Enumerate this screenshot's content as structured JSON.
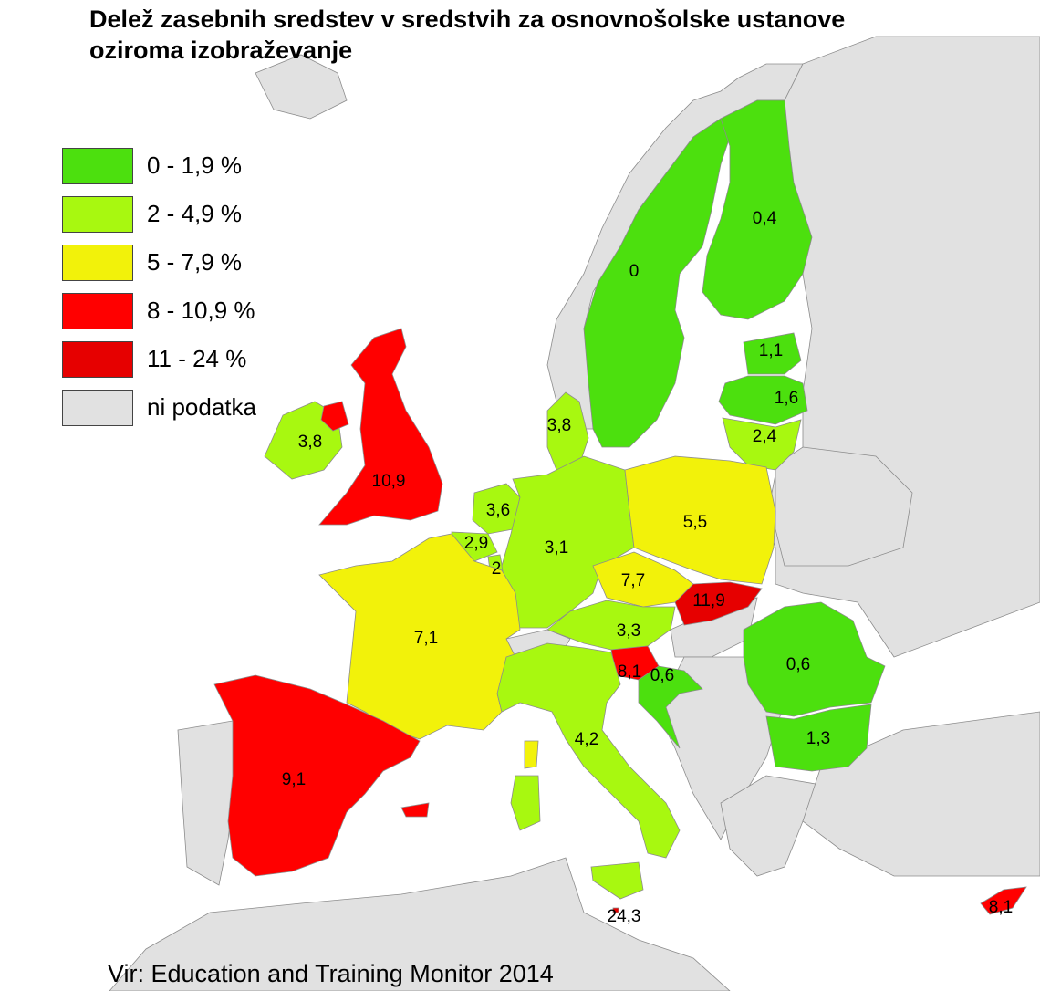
{
  "title": "Delež zasebnih sredstev v sredstvih za osnovnošolske ustanove oziroma izobraževanje",
  "source": "Vir: Education and Training Monitor 2014",
  "colors": {
    "sea": "#ffffff",
    "no_data": "#e1e1e1",
    "border": "#8c8c8c"
  },
  "legend": [
    {
      "label": "0 - 1,9 %",
      "color": "#4ce00e"
    },
    {
      "label": "2 - 4,9 %",
      "color": "#a8f810"
    },
    {
      "label": "5 - 7,9 %",
      "color": "#f2f20a"
    },
    {
      "label": "8 - 10,9 %",
      "color": "#ff0000"
    },
    {
      "label": "11 - 24 %",
      "color": "#e60000"
    },
    {
      "label": "ni podatka",
      "color": "#e1e1e1"
    }
  ],
  "regions": [
    {
      "code": "SE",
      "value": "0"
    },
    {
      "code": "FI",
      "value": "0,4"
    },
    {
      "code": "EE",
      "value": "1,1"
    },
    {
      "code": "LV",
      "value": "1,6"
    },
    {
      "code": "LT",
      "value": "2,4"
    },
    {
      "code": "DK",
      "value": "3,8"
    },
    {
      "code": "IE",
      "value": "3,8"
    },
    {
      "code": "UK",
      "value": "10,9"
    },
    {
      "code": "NL",
      "value": "3,6"
    },
    {
      "code": "BE",
      "value": "2,9"
    },
    {
      "code": "LU",
      "value": "2"
    },
    {
      "code": "DE",
      "value": "3,1"
    },
    {
      "code": "PL",
      "value": "5,5"
    },
    {
      "code": "CZ",
      "value": "7,7"
    },
    {
      "code": "SK",
      "value": "11,9"
    },
    {
      "code": "AT",
      "value": "3,3"
    },
    {
      "code": "SI",
      "value": "8,1"
    },
    {
      "code": "HR",
      "value": "0,6"
    },
    {
      "code": "RO",
      "value": "0,6"
    },
    {
      "code": "BG",
      "value": "1,3"
    },
    {
      "code": "FR",
      "value": "7,1"
    },
    {
      "code": "ES",
      "value": "9,1"
    },
    {
      "code": "IT",
      "value": "4,2"
    },
    {
      "code": "MT",
      "value": "24,3"
    },
    {
      "code": "CY",
      "value": "8,1"
    }
  ]
}
